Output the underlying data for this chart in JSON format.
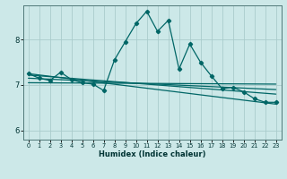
{
  "xlabel": "Humidex (Indice chaleur)",
  "ylabel": "",
  "bg_color": "#cce8e8",
  "grid_color": "#aacccc",
  "line_color": "#006666",
  "ylim": [
    5.8,
    8.75
  ],
  "xlim": [
    -0.5,
    23.5
  ],
  "yticks": [
    6,
    7,
    8
  ],
  "xticks": [
    0,
    1,
    2,
    3,
    4,
    5,
    6,
    7,
    8,
    9,
    10,
    11,
    12,
    13,
    14,
    15,
    16,
    17,
    18,
    19,
    20,
    21,
    22,
    23
  ],
  "main_line_x": [
    0,
    1,
    2,
    3,
    4,
    5,
    6,
    7,
    8,
    9,
    10,
    11,
    12,
    13,
    14,
    15,
    16,
    17,
    18,
    19,
    20,
    21,
    22,
    23
  ],
  "main_line_y": [
    7.25,
    7.15,
    7.1,
    7.28,
    7.12,
    7.05,
    7.02,
    6.88,
    7.55,
    7.95,
    8.35,
    8.62,
    8.18,
    8.42,
    7.35,
    7.9,
    7.5,
    7.2,
    6.92,
    6.95,
    6.85,
    6.7,
    6.62,
    6.62
  ],
  "trend_lines": [
    {
      "x": [
        0,
        23
      ],
      "y": [
        7.25,
        6.58
      ]
    },
    {
      "x": [
        0,
        23
      ],
      "y": [
        7.22,
        6.8
      ]
    },
    {
      "x": [
        0,
        23
      ],
      "y": [
        7.15,
        6.9
      ]
    },
    {
      "x": [
        0,
        23
      ],
      "y": [
        7.05,
        7.02
      ]
    }
  ]
}
